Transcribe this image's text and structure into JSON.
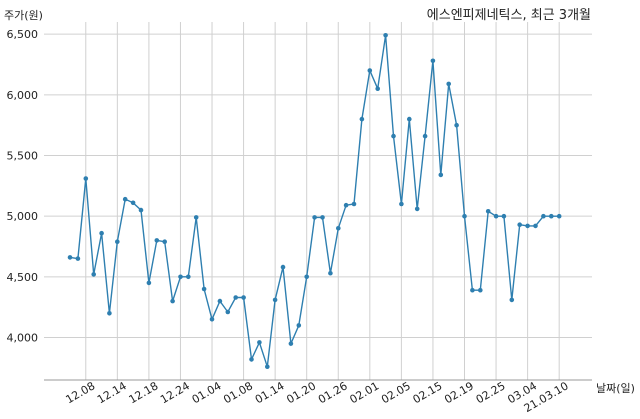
{
  "chart_data": {
    "type": "line",
    "title": "에스엔피제네틱스, 최근 3개월",
    "ylabel": "주가(원)",
    "xlabel": "날짜(일)",
    "ylim": [
      3650,
      6600
    ],
    "yticks": [
      4000,
      4500,
      5000,
      5500,
      6000,
      6500
    ],
    "ytick_labels": [
      "4,000",
      "4,500",
      "5,000",
      "5,500",
      "6,000",
      "6,500"
    ],
    "xtick_labels": [
      "12.08",
      "12.14",
      "12.18",
      "12.24",
      "01.04",
      "01.08",
      "01.14",
      "01.20",
      "01.26",
      "02.01",
      "02.05",
      "02.15",
      "02.19",
      "02.25",
      "03.04",
      "21.03.10"
    ],
    "xtick_index": [
      2,
      6,
      10,
      14,
      18,
      22,
      26,
      30,
      34,
      38,
      42,
      46,
      50,
      54,
      58,
      62
    ],
    "grid": true,
    "color": "#2e7fb0",
    "series": [
      {
        "values": [
          4660,
          4650,
          5310,
          4520,
          4860,
          4200,
          4790,
          5140,
          5110,
          5050,
          4450,
          4800,
          4790,
          4300,
          4500,
          4500,
          4990,
          4400,
          4150,
          4300,
          4210,
          4330,
          4330,
          3820,
          3960,
          3760,
          4310,
          4580,
          3950,
          4100,
          4500,
          4990,
          4990,
          4530,
          4900,
          5090,
          5100,
          5800,
          6200,
          6050,
          6490,
          5660,
          5100,
          5800,
          5060,
          5660,
          6280,
          5340,
          6090,
          5750,
          5000,
          4390,
          4390,
          5040,
          5000,
          5000,
          4310,
          4930,
          4920,
          4920,
          5000,
          5000,
          5000
        ]
      }
    ]
  }
}
